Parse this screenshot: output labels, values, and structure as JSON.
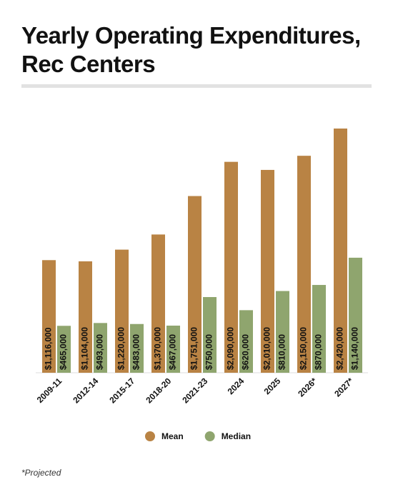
{
  "chart_data": {
    "type": "bar",
    "title": "Yearly Operating Expenditures, Rec Centers",
    "categories": [
      "2009-11",
      "2012-14",
      "2015-17",
      "2018-20",
      "2021-23",
      "2024",
      "2025",
      "2026*",
      "2027*"
    ],
    "series": [
      {
        "name": "Mean",
        "color": "#b98344",
        "values": [
          1116000,
          1104000,
          1220000,
          1370000,
          1751000,
          2090000,
          2010000,
          2150000,
          2420000
        ],
        "value_labels": [
          "$1,116,000",
          "$1,104,000",
          "$1,220,000",
          "$1,370,000",
          "$1,751,000",
          "$2,090,000",
          "$2,010,000",
          "$2,150,000",
          "$2,420,000"
        ]
      },
      {
        "name": "Median",
        "color": "#8fa56e",
        "values": [
          465000,
          493000,
          483000,
          467000,
          750000,
          620000,
          810000,
          870000,
          1140000
        ],
        "value_labels": [
          "$465,000",
          "$493,000",
          "$483,000",
          "$467,000",
          "$750,000",
          "$620,000",
          "$810,000",
          "$870,000",
          "$1,140,000"
        ]
      }
    ],
    "footnote": "*Projected"
  }
}
